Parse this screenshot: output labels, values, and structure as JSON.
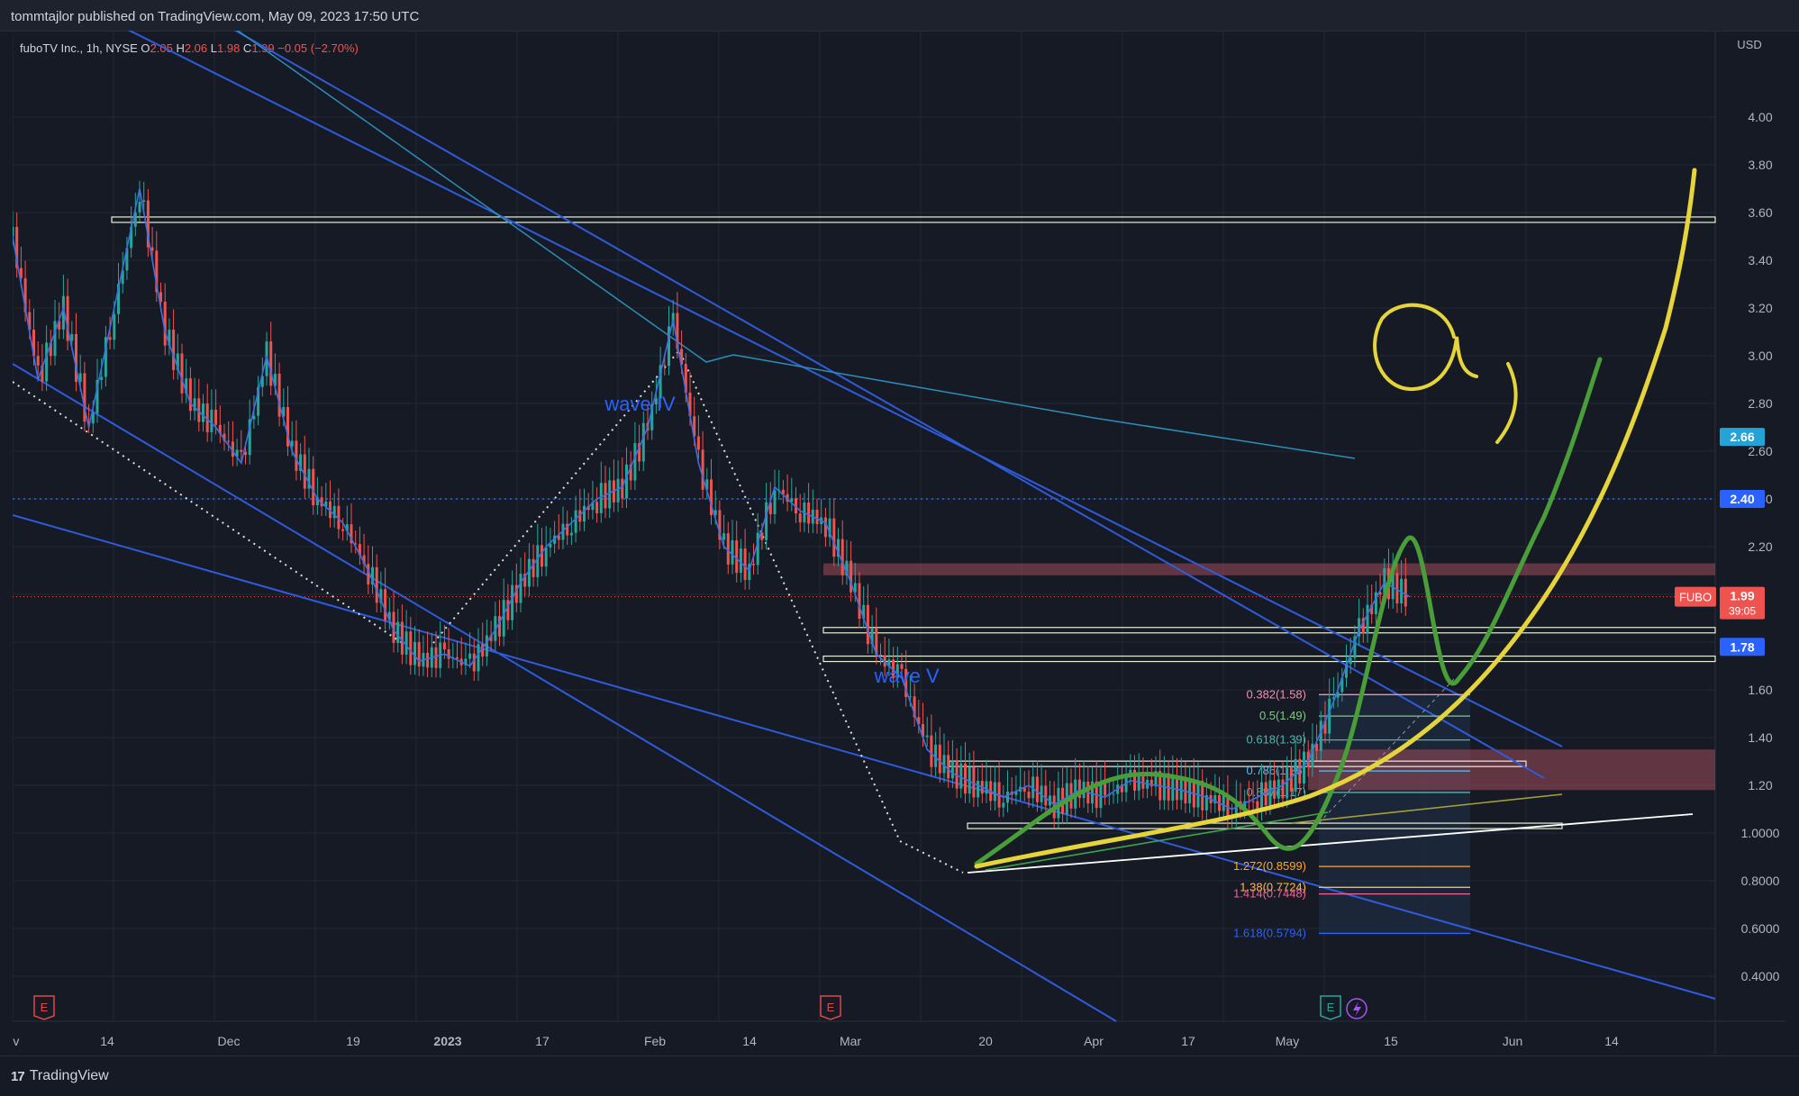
{
  "header": {
    "publisher": "tommtajlor published on TradingView.com, May 09, 2023 17:50 UTC"
  },
  "legend": {
    "symbol": "fuboTV Inc., 1h, NYSE",
    "o_label": "O",
    "o_val": "2.05",
    "h_label": "H",
    "h_val": "2.06",
    "l_label": "L",
    "l_val": "1.98",
    "c_label": "C",
    "c_val": "1.99",
    "change": "−0.05 (−2.70%)"
  },
  "footer": {
    "brand": "TradingView",
    "brand_mark": "17"
  },
  "colors": {
    "background": "#161a25",
    "grid": "#232836",
    "axis_text": "#b2b5be",
    "candle_up": "#26a69a",
    "candle_down": "#ef5350",
    "ma_line": "#3d6fe0",
    "trendline": "#2f5bdc",
    "annotation_blue": "#2962ff",
    "highlight_yellow": "#e6d53a",
    "highlight_green": "#4a9e3a",
    "zone_red": "#a14c5a"
  },
  "chart_data": {
    "type": "candlestick",
    "title": "fuboTV Inc., 1h, NYSE",
    "currency": "USD",
    "ylim": [
      0.3,
      4.3
    ],
    "y_ticks": [
      "4.00",
      "3.80",
      "3.60",
      "3.40",
      "3.20",
      "3.00",
      "2.80",
      "2.60",
      "2.40",
      "2.20",
      "1.60",
      "1.40",
      "1.20",
      "1.0000",
      "0.8000",
      "0.6000",
      "0.4000"
    ],
    "x_ticks": [
      "ov",
      "14",
      "Dec",
      "19",
      "2023",
      "17",
      "Feb",
      "14",
      "Mar",
      "20",
      "Apr",
      "17",
      "May",
      "15",
      "Jun",
      "14"
    ],
    "price_path": [
      [
        0,
        3.5
      ],
      [
        1,
        2.9
      ],
      [
        2,
        3.2
      ],
      [
        3,
        2.7
      ],
      [
        4,
        3.2
      ],
      [
        5,
        3.7
      ],
      [
        6,
        3.1
      ],
      [
        7,
        2.8
      ],
      [
        8,
        2.7
      ],
      [
        9,
        2.55
      ],
      [
        10,
        3.0
      ],
      [
        11,
        2.6
      ],
      [
        12,
        2.4
      ],
      [
        13,
        2.3
      ],
      [
        14,
        2.1
      ],
      [
        15,
        1.85
      ],
      [
        16,
        1.72
      ],
      [
        17,
        1.75
      ],
      [
        18,
        1.7
      ],
      [
        19,
        1.85
      ],
      [
        20,
        2.05
      ],
      [
        21,
        2.2
      ],
      [
        22,
        2.3
      ],
      [
        23,
        2.4
      ],
      [
        24,
        2.45
      ],
      [
        25,
        2.7
      ],
      [
        26,
        3.15
      ],
      [
        27,
        2.55
      ],
      [
        28,
        2.2
      ],
      [
        29,
        2.1
      ],
      [
        30,
        2.45
      ],
      [
        31,
        2.35
      ],
      [
        32,
        2.3
      ],
      [
        33,
        2.05
      ],
      [
        34,
        1.75
      ],
      [
        35,
        1.65
      ],
      [
        36,
        1.35
      ],
      [
        37,
        1.25
      ],
      [
        38,
        1.2
      ],
      [
        39,
        1.15
      ],
      [
        40,
        1.2
      ],
      [
        41,
        1.12
      ],
      [
        42,
        1.18
      ],
      [
        43,
        1.15
      ],
      [
        44,
        1.22
      ],
      [
        45,
        1.2
      ],
      [
        46,
        1.18
      ],
      [
        47,
        1.15
      ],
      [
        48,
        1.1
      ],
      [
        49,
        1.15
      ],
      [
        50,
        1.2
      ],
      [
        51,
        1.3
      ],
      [
        52,
        1.55
      ],
      [
        53,
        1.85
      ],
      [
        54,
        2.05
      ],
      [
        55,
        1.99
      ]
    ],
    "price_labels": [
      {
        "text": "2.66",
        "value": 2.66,
        "bg": "#26a3d6"
      },
      {
        "text": "2.40",
        "value": 2.4,
        "bg": "#2962ff"
      },
      {
        "text": "1.78",
        "value": 1.78,
        "bg": "#2962ff"
      }
    ],
    "current_price": {
      "symbol": "FUBO",
      "price": "1.99",
      "countdown": "39:05",
      "value": 1.99
    },
    "horizontal_levels": [
      3.57,
      1.85,
      1.73,
      1.29,
      1.03
    ],
    "dotted_level": 2.4,
    "fib_levels": [
      {
        "label": "0.382(1.58)",
        "value": 1.58,
        "color": "#f48fb1"
      },
      {
        "label": "0.5(1.49)",
        "value": 1.49,
        "color": "#81c784"
      },
      {
        "label": "0.618(1.39)",
        "value": 1.39,
        "color": "#4db6ac"
      },
      {
        "label": "0.786(1.26)",
        "value": 1.26,
        "color": "#4fc3f7"
      },
      {
        "label": "0.887(1.17)",
        "value": 1.17,
        "color": "#4db6ac"
      },
      {
        "label": "1.272(0.8599)",
        "value": 0.8599,
        "color": "#ffa726"
      },
      {
        "label": "1.38(0.7724)",
        "value": 0.7724,
        "color": "#ffb74d"
      },
      {
        "label": "1.414(0.7448)",
        "value": 0.7448,
        "color": "#f06292"
      },
      {
        "label": "1.618(0.5794)",
        "value": 0.5794,
        "color": "#2962ff"
      }
    ],
    "annotations": [
      {
        "text": "wave IV",
        "time": 24.7,
        "value": 2.77
      },
      {
        "text": "wave V",
        "time": 35.2,
        "value": 1.63
      }
    ],
    "handwriting": "a,",
    "event_markers": [
      "E",
      "E",
      "E"
    ]
  }
}
